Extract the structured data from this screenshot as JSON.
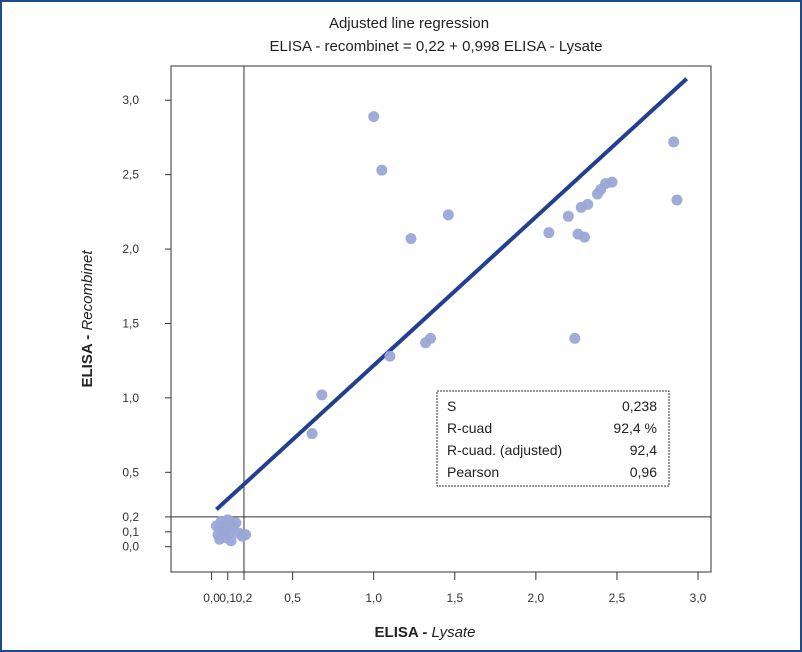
{
  "chart_data": {
    "type": "scatter",
    "title": "Adjusted line regression",
    "subtitle": "ELISA - recombinet = 0,22 + 0,998 ELISA - Lysate",
    "xlabel_prefix": "ELISA - ",
    "xlabel_italic": "Lysate",
    "ylabel_prefix": "ELISA - ",
    "ylabel_italic": "Recombinet",
    "xlim": [
      -0.25,
      3.08
    ],
    "ylim": [
      -0.17,
      3.23
    ],
    "x_ticks": [
      0.0,
      0.1,
      0.2,
      0.5,
      1.0,
      1.5,
      2.0,
      2.5,
      3.0
    ],
    "x_tick_labels": [
      "0,0",
      "0,1",
      "0,2",
      "0,5",
      "1,0",
      "1,5",
      "2,0",
      "2,5",
      "3,0"
    ],
    "y_ticks": [
      0.0,
      0.1,
      0.2,
      0.5,
      1.0,
      1.5,
      2.0,
      2.5,
      3.0
    ],
    "y_tick_labels": [
      "0,0",
      "0,1",
      "0,2",
      "0,5",
      "1,0",
      "1,5",
      "2,0",
      "2,5",
      "3,0"
    ],
    "reference_lines": {
      "x": 0.2,
      "y": 0.2
    },
    "regression": {
      "intercept": 0.22,
      "slope": 0.998,
      "x_range": [
        0.03,
        2.93
      ]
    },
    "points": [
      [
        0.03,
        0.14
      ],
      [
        0.04,
        0.08
      ],
      [
        0.05,
        0.05
      ],
      [
        0.06,
        0.12
      ],
      [
        0.06,
        0.17
      ],
      [
        0.07,
        0.1
      ],
      [
        0.08,
        0.15
      ],
      [
        0.09,
        0.06
      ],
      [
        0.1,
        0.18
      ],
      [
        0.1,
        0.12
      ],
      [
        0.11,
        0.09
      ],
      [
        0.12,
        0.04
      ],
      [
        0.13,
        0.14
      ],
      [
        0.15,
        0.16
      ],
      [
        0.17,
        0.09
      ],
      [
        0.19,
        0.07
      ],
      [
        0.21,
        0.08
      ],
      [
        0.62,
        0.76
      ],
      [
        0.68,
        1.02
      ],
      [
        1.1,
        1.28
      ],
      [
        1.32,
        1.37
      ],
      [
        1.35,
        1.4
      ],
      [
        1.0,
        2.89
      ],
      [
        1.05,
        2.53
      ],
      [
        1.23,
        2.07
      ],
      [
        1.46,
        2.23
      ],
      [
        2.08,
        2.11
      ],
      [
        2.2,
        2.22
      ],
      [
        2.24,
        1.4
      ],
      [
        2.26,
        2.1
      ],
      [
        2.28,
        2.28
      ],
      [
        2.3,
        2.08
      ],
      [
        2.32,
        2.3
      ],
      [
        2.38,
        2.37
      ],
      [
        2.4,
        2.4
      ],
      [
        2.43,
        2.44
      ],
      [
        2.47,
        2.45
      ],
      [
        2.85,
        2.72
      ],
      [
        2.87,
        2.33
      ]
    ],
    "stats": [
      {
        "label": "S",
        "value": "0,238"
      },
      {
        "label": "R-cuad",
        "value": "92,4 %"
      },
      {
        "label": "R-cuad. (adjusted)",
        "value": "92,4"
      },
      {
        "label": "Pearson",
        "value": "0,96"
      }
    ],
    "colors": {
      "points": "#9aa6d6",
      "line": "#23408f",
      "frame": "#1f4a8a"
    }
  }
}
